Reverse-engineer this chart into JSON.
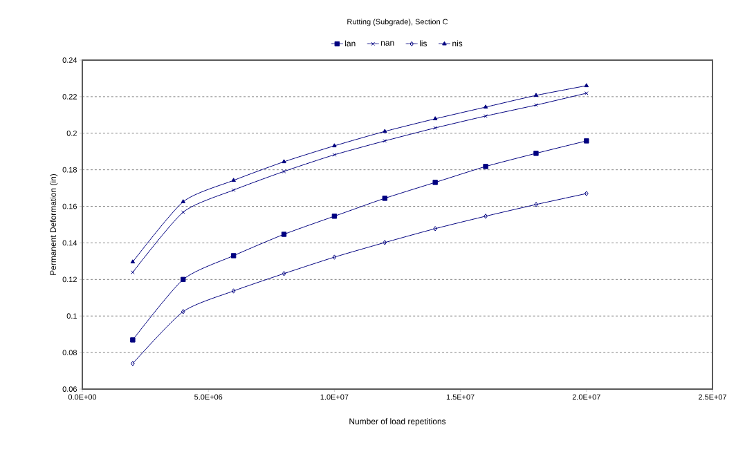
{
  "chart_data": {
    "type": "line",
    "title": "Rutting (Subgrade), Section C",
    "xlabel": "Number of load repetitions",
    "ylabel": "Permanent Deformation (in)",
    "x": [
      2000000,
      4000000,
      6000000,
      8000000,
      10000000,
      12000000,
      14000000,
      16000000,
      18000000,
      20000000
    ],
    "series": [
      {
        "name": "lan",
        "color": "#000080",
        "marker": "square",
        "values": [
          0.0869,
          0.12,
          0.133,
          0.1447,
          0.1546,
          0.1644,
          0.1731,
          0.1818,
          0.189,
          0.1958
        ]
      },
      {
        "name": "nan",
        "color": "#000080",
        "marker": "cross",
        "values": [
          0.1239,
          0.1568,
          0.1689,
          0.1791,
          0.1882,
          0.1958,
          0.2029,
          0.2094,
          0.2154,
          0.2219
        ]
      },
      {
        "name": "lis",
        "color": "#000080",
        "marker": "diamond",
        "values": [
          0.074,
          0.1024,
          0.1137,
          0.1232,
          0.1322,
          0.1402,
          0.1478,
          0.1546,
          0.161,
          0.167
        ]
      },
      {
        "name": "nis",
        "color": "#000080",
        "marker": "triangle",
        "values": [
          0.1296,
          0.1625,
          0.1742,
          0.1844,
          0.1931,
          0.201,
          0.2079,
          0.2143,
          0.2207,
          0.226
        ]
      }
    ],
    "xlim": [
      0,
      25000000
    ],
    "xticks": [
      {
        "value": 0,
        "label": "0.0E+00"
      },
      {
        "value": 5000000,
        "label": "5.0E+06"
      },
      {
        "value": 10000000,
        "label": "1.0E+07"
      },
      {
        "value": 15000000,
        "label": "1.5E+07"
      },
      {
        "value": 20000000,
        "label": "2.0E+07"
      },
      {
        "value": 25000000,
        "label": "2.5E+07"
      }
    ],
    "ylim": [
      0.06,
      0.24
    ],
    "yticks": [
      0.06,
      0.08,
      0.1,
      0.12,
      0.14,
      0.16,
      0.18,
      0.2,
      0.22,
      0.24
    ],
    "grid": "y",
    "legend": "top",
    "line_style": "solid"
  }
}
